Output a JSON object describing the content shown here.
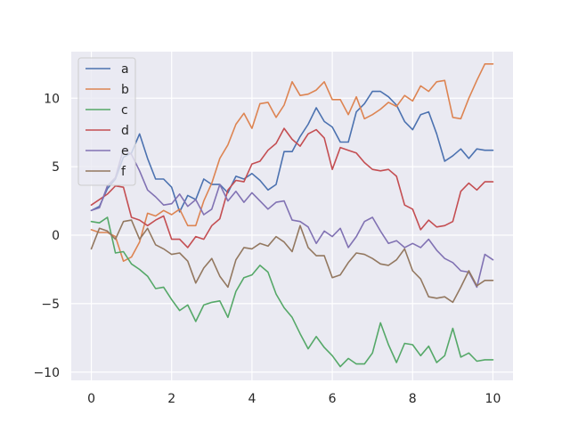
{
  "chart_data": {
    "type": "line",
    "title": "",
    "xlabel": "",
    "ylabel": "",
    "xlim": [
      -0.5,
      10.5
    ],
    "ylim": [
      -10.6,
      13.4
    ],
    "xticks": [
      0,
      2,
      4,
      6,
      8,
      10
    ],
    "yticks": [
      -10,
      -5,
      0,
      5,
      10
    ],
    "xtick_labels": [
      "0",
      "2",
      "4",
      "6",
      "8",
      "10"
    ],
    "ytick_labels": [
      "−10",
      "−5",
      "0",
      "5",
      "10"
    ],
    "grid": true,
    "legend_placement": "upper-left",
    "x": [
      0.0,
      0.2,
      0.4,
      0.6,
      0.8,
      1.0,
      1.2,
      1.4,
      1.6,
      1.8,
      2.0,
      2.2,
      2.4,
      2.6,
      2.8,
      3.0,
      3.2,
      3.4,
      3.6,
      3.8,
      4.0,
      4.2,
      4.4,
      4.6,
      4.8,
      5.0,
      5.2,
      5.4,
      5.6,
      5.8,
      6.0,
      6.2,
      6.4,
      6.6,
      6.8,
      7.0,
      7.2,
      7.4,
      7.6,
      7.8,
      8.0,
      8.2,
      8.4,
      8.6,
      8.8,
      9.0,
      9.2,
      9.4,
      9.6,
      9.8,
      10.0
    ],
    "series": [
      {
        "name": "a",
        "color": "#4c72b0",
        "values": [
          1.8,
          2.1,
          3.4,
          4.1,
          5.7,
          6.0,
          7.4,
          5.6,
          4.1,
          4.1,
          3.5,
          1.7,
          2.9,
          2.6,
          4.1,
          3.7,
          3.7,
          3.1,
          4.3,
          4.1,
          4.5,
          4.0,
          3.3,
          3.7,
          6.1,
          6.1,
          7.2,
          8.1,
          9.3,
          8.3,
          7.9,
          6.8,
          6.8,
          9.0,
          9.6,
          10.5,
          10.5,
          10.1,
          9.5,
          8.3,
          7.7,
          8.8,
          9.0,
          7.4,
          5.4,
          5.8,
          6.3,
          5.6,
          6.3,
          6.2,
          6.2
        ]
      },
      {
        "name": "b",
        "color": "#dd8452",
        "values": [
          0.4,
          0.2,
          0.2,
          -0.1,
          -1.9,
          -1.6,
          -0.5,
          1.6,
          1.4,
          1.8,
          1.5,
          1.9,
          0.7,
          0.7,
          2.5,
          3.8,
          5.6,
          6.6,
          8.1,
          8.9,
          7.8,
          9.6,
          9.7,
          8.6,
          9.5,
          11.2,
          10.2,
          10.3,
          10.6,
          11.2,
          9.9,
          9.9,
          8.8,
          10.1,
          8.5,
          8.8,
          9.2,
          9.7,
          9.4,
          10.2,
          9.8,
          10.9,
          10.5,
          11.2,
          11.3,
          8.6,
          8.5,
          10.0,
          11.3,
          12.5,
          12.5
        ]
      },
      {
        "name": "c",
        "color": "#55a868",
        "values": [
          1.0,
          0.9,
          1.3,
          -1.3,
          -1.2,
          -2.1,
          -2.5,
          -3.0,
          -3.9,
          -3.8,
          -4.7,
          -5.5,
          -5.1,
          -6.3,
          -5.1,
          -4.9,
          -4.8,
          -6.0,
          -4.1,
          -3.1,
          -2.9,
          -2.2,
          -2.7,
          -4.3,
          -5.3,
          -6.0,
          -7.2,
          -8.3,
          -7.4,
          -8.2,
          -8.8,
          -9.6,
          -9.0,
          -9.4,
          -9.4,
          -8.6,
          -6.4,
          -8.0,
          -9.3,
          -7.9,
          -8.0,
          -8.8,
          -8.1,
          -9.3,
          -8.8,
          -6.8,
          -8.9,
          -8.6,
          -9.2,
          -9.1,
          -9.1
        ]
      },
      {
        "name": "d",
        "color": "#c44e52",
        "values": [
          2.2,
          2.6,
          3.0,
          3.6,
          3.5,
          1.3,
          1.1,
          0.7,
          1.1,
          1.4,
          -0.3,
          -0.3,
          -0.9,
          -0.1,
          -0.3,
          0.7,
          1.2,
          3.3,
          4.0,
          3.9,
          5.2,
          5.4,
          6.2,
          6.7,
          7.8,
          7.0,
          6.5,
          7.4,
          7.7,
          7.1,
          4.8,
          6.4,
          6.2,
          6.0,
          5.3,
          4.8,
          4.7,
          4.8,
          4.3,
          2.2,
          1.9,
          0.4,
          1.1,
          0.6,
          0.7,
          1.0,
          3.2,
          3.8,
          3.3,
          3.9,
          3.9
        ]
      },
      {
        "name": "e",
        "color": "#8172b3",
        "values": [
          1.8,
          2.0,
          3.6,
          4.2,
          6.3,
          5.9,
          4.7,
          3.3,
          2.8,
          2.2,
          2.3,
          3.0,
          2.1,
          2.6,
          1.5,
          1.9,
          3.7,
          2.5,
          3.2,
          2.4,
          3.1,
          2.5,
          1.9,
          2.4,
          2.5,
          1.1,
          1.0,
          0.6,
          -0.6,
          0.3,
          -0.1,
          0.5,
          -0.9,
          -0.1,
          1.0,
          1.3,
          0.3,
          -0.6,
          -0.4,
          -0.9,
          -0.6,
          -0.9,
          -0.3,
          -1.1,
          -1.7,
          -2.0,
          -2.6,
          -2.7,
          -3.8,
          -1.4,
          -1.8
        ]
      },
      {
        "name": "f",
        "color": "#937860",
        "values": [
          -1.0,
          0.5,
          0.3,
          -0.3,
          1.0,
          1.1,
          -0.3,
          0.5,
          -0.7,
          -1.0,
          -1.4,
          -1.3,
          -1.9,
          -3.5,
          -2.4,
          -1.7,
          -3.0,
          -3.8,
          -1.8,
          -0.9,
          -1.0,
          -0.6,
          -0.8,
          -0.1,
          -0.5,
          -1.2,
          0.7,
          -0.9,
          -1.5,
          -1.5,
          -3.1,
          -2.9,
          -2.0,
          -1.3,
          -1.4,
          -1.7,
          -2.1,
          -2.2,
          -1.8,
          -1.0,
          -2.6,
          -3.2,
          -4.5,
          -4.6,
          -4.5,
          -4.9,
          -3.8,
          -2.6,
          -3.7,
          -3.3,
          -3.3
        ]
      }
    ]
  }
}
